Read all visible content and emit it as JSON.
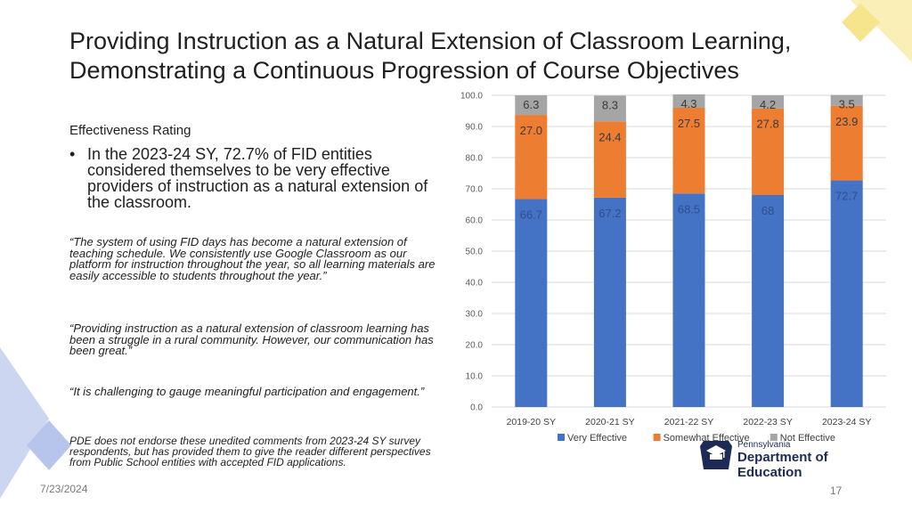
{
  "slide": {
    "title": "Providing Instruction as a Natural Extension of Classroom Learning, Demonstrating a Continuous Progression of Course Objectives",
    "subhead": "Effectiveness Rating",
    "bullet_marker": "•",
    "bullet": "In the 2023-24 SY, 72.7% of FID entities considered themselves to be very effective providers of instruction as a natural extension of the classroom.",
    "quotes": [
      "“The system of using FID days has become a natural extension of teaching schedule. We consistently use Google Classroom as our platform for instruction throughout the year, so all learning materials are easily accessible to students throughout the year.”",
      "“Providing instruction as a natural extension of classroom learning has been a struggle in a rural community.  However, our communication has been great.”",
      "“It is challenging to gauge meaningful participation and engagement.”"
    ],
    "disclaimer": "PDE does not endorse these unedited comments from 2023-24 SY survey respondents, but has provided them to give the reader different perspectives from Public School entities with accepted FID applications.",
    "date": "7/23/2024",
    "page_number": "17",
    "logo": {
      "state": "Pennsylvania",
      "department": "Department of Education",
      "icon": "keystone-school-icon"
    },
    "decor_colors": [
      "#f6e58d",
      "#fbefb8",
      "#cdd6f0",
      "#b7c4ec"
    ]
  },
  "chart_data": {
    "type": "bar",
    "stacked": true,
    "categories": [
      "2019-20 SY",
      "2020-21 SY",
      "2021-22 SY",
      "2022-23 SY",
      "2023-24 SY"
    ],
    "series": [
      {
        "name": "Very Effective",
        "color": "#4472c4",
        "values": [
          66.7,
          67.2,
          68.5,
          68,
          72.7
        ],
        "labels": [
          "66.7",
          "67.2",
          "68.5",
          "68",
          "72.7"
        ]
      },
      {
        "name": "Somewhat Effective",
        "color": "#ed7d31",
        "values": [
          27.0,
          24.4,
          27.5,
          27.8,
          23.9
        ],
        "labels": [
          "27.0",
          "24.4",
          "27.5",
          "27.8",
          "23.9"
        ]
      },
      {
        "name": "Not Effective",
        "color": "#a5a5a5",
        "values": [
          6.3,
          8.3,
          4.3,
          4.2,
          3.5
        ],
        "labels": [
          "6.3",
          "8.3",
          "4.3",
          "4.2",
          "3.5"
        ]
      }
    ],
    "ylim": [
      0,
      100
    ],
    "yticks": [
      "0.0",
      "10.0",
      "20.0",
      "30.0",
      "40.0",
      "50.0",
      "60.0",
      "70.0",
      "80.0",
      "90.0",
      "100.0"
    ],
    "grid": true,
    "legend": "bottom"
  }
}
